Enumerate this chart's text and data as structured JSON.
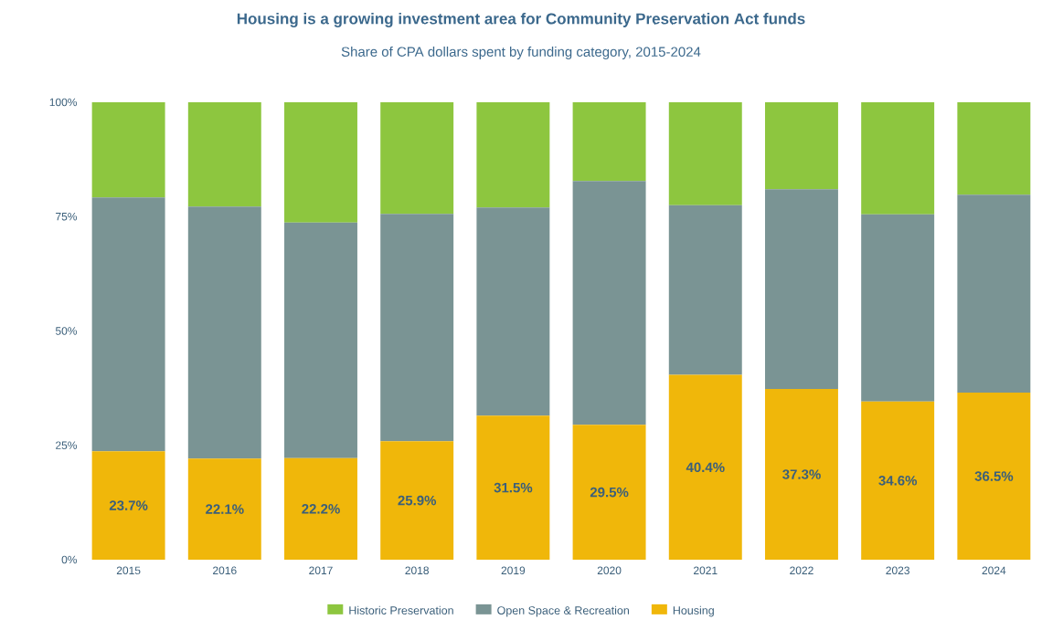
{
  "chart_data": {
    "type": "bar",
    "stacked": true,
    "title": "Housing is a growing investment area for Community Preservation Act funds",
    "subtitle": "Share of CPA dollars spent by funding category, 2015-2024",
    "categories": [
      "2015",
      "2016",
      "2017",
      "2018",
      "2019",
      "2020",
      "2021",
      "2022",
      "2023",
      "2024"
    ],
    "series": [
      {
        "name": "Housing",
        "color": "#f0b70a",
        "values": [
          23.7,
          22.1,
          22.2,
          25.9,
          31.5,
          29.5,
          40.4,
          37.3,
          34.6,
          36.5
        ],
        "value_labels": [
          "23.7%",
          "22.1%",
          "22.2%",
          "25.9%",
          "31.5%",
          "29.5%",
          "40.4%",
          "37.3%",
          "34.6%",
          "36.5%"
        ]
      },
      {
        "name": "Open Space & Recreation",
        "color": "#7a9494",
        "values": [
          55.5,
          55.1,
          51.5,
          49.7,
          45.5,
          53.3,
          37.1,
          43.7,
          40.9,
          43.3
        ]
      },
      {
        "name": "Historic Preservation",
        "color": "#8dc63f",
        "values": [
          20.8,
          22.8,
          26.3,
          24.4,
          23.0,
          17.2,
          22.5,
          19.0,
          24.5,
          20.2
        ]
      }
    ],
    "ylim": [
      0,
      100
    ],
    "yticks": [
      {
        "value": 0,
        "label": "0%"
      },
      {
        "value": 25,
        "label": "25%"
      },
      {
        "value": 50,
        "label": "50%"
      },
      {
        "value": 75,
        "label": "75%"
      },
      {
        "value": 100,
        "label": "100%"
      }
    ],
    "grid": false,
    "legend": "bottom"
  }
}
